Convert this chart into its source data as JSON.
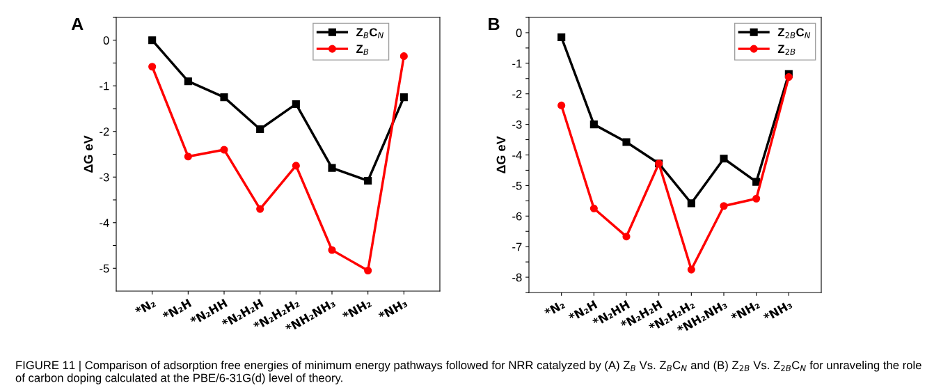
{
  "chart_data": [
    {
      "type": "line",
      "title": "A",
      "ylabel": "ΔG eV",
      "categories": [
        "*N₂",
        "*N₂H",
        "*N₂HH",
        "*N₂H₂H",
        "*N₂H₂H₂",
        "*NH₂NH₃",
        "*NH₂",
        "*NH₃"
      ],
      "series": [
        {
          "name": "Z$_{B}$C$_{N}$",
          "color": "#000000",
          "marker": "square",
          "values": [
            0.0,
            -0.9,
            -1.25,
            -1.95,
            -1.4,
            -2.8,
            -3.08,
            -1.25
          ]
        },
        {
          "name": "Z$_{B}$",
          "color": "#ff0000",
          "marker": "circle",
          "values": [
            -0.58,
            -2.55,
            -2.4,
            -3.7,
            -2.75,
            -4.6,
            -5.05,
            -0.35
          ]
        }
      ],
      "ylim": [
        -5.5,
        0.5
      ],
      "yticks": [
        {
          "value": 0.5,
          "label": null
        },
        0,
        {
          "value": -0.5,
          "label": null
        },
        {
          "value": -1,
          "label": "-1"
        },
        {
          "value": -1.5,
          "label": null
        },
        {
          "value": -2,
          "label": "-2"
        },
        {
          "value": -2.5,
          "label": null
        },
        {
          "value": -3,
          "label": "-3"
        },
        {
          "value": -3.5,
          "label": null
        },
        {
          "value": -4,
          "label": "-4"
        },
        {
          "value": -4.5,
          "label": null
        },
        {
          "value": -5,
          "label": "-5"
        }
      ],
      "grid": false,
      "legend": "top right",
      "line_style": "solid",
      "annotations": [
        "FIGURE 11 | Comparison of adsorption free energies of minimum energy pathways followed for NRR catalyzed by (A) Z$_{B}$ Vs. Z$_{B}$C$_{N}$ and (B) Z$_{2B}$ Vs. Z$_{2B}$C$_{N}$ for unraveling the role of carbon doping calculated at the PBE/6-31G(d) level of theory."
      ]
    },
    {
      "type": "line",
      "title": "B",
      "ylabel": "ΔG eV",
      "categories": [
        "*N₂",
        "*N₂H",
        "*N₂HH",
        "*N₂H₂H",
        "*N₂H₂H₂",
        "*NH₂NH₃",
        "*NH₂",
        "*NH₃"
      ],
      "series": [
        {
          "name": "Z$_{2B}$C$_{N}$",
          "color": "#000000",
          "marker": "square",
          "values": [
            -0.15,
            -3.0,
            -3.58,
            -4.28,
            -5.58,
            -4.12,
            -4.88,
            -1.35
          ]
        },
        {
          "name": "Z$_{2B}$",
          "color": "#ff0000",
          "marker": "circle",
          "values": [
            -2.38,
            -5.75,
            -6.67,
            -4.28,
            -7.75,
            -5.67,
            -5.43,
            -1.45
          ]
        }
      ],
      "ylim": [
        -8.5,
        0.5
      ],
      "yticks": [
        {
          "value": 0.5,
          "label": null
        },
        0,
        {
          "value": -0.5,
          "label": null
        },
        {
          "value": -1,
          "label": "-1"
        },
        {
          "value": -1.5,
          "label": null
        },
        {
          "value": -2,
          "label": "-2"
        },
        {
          "value": -2.5,
          "label": null
        },
        {
          "value": -3,
          "label": "-3"
        },
        {
          "value": -3.5,
          "label": null
        },
        {
          "value": -4,
          "label": "-4"
        },
        {
          "value": -4.5,
          "label": null
        },
        {
          "value": -5,
          "label": "-5"
        },
        {
          "value": -5.5,
          "label": null
        },
        {
          "value": -6,
          "label": "-6"
        },
        {
          "value": -6.5,
          "label": null
        },
        {
          "value": -7,
          "label": "-7"
        },
        {
          "value": -7.5,
          "label": null
        },
        {
          "value": -8,
          "label": "-8"
        },
        {
          "value": -8.5,
          "label": null
        }
      ],
      "grid": false,
      "legend": "top right",
      "line_style": "solid"
    }
  ]
}
